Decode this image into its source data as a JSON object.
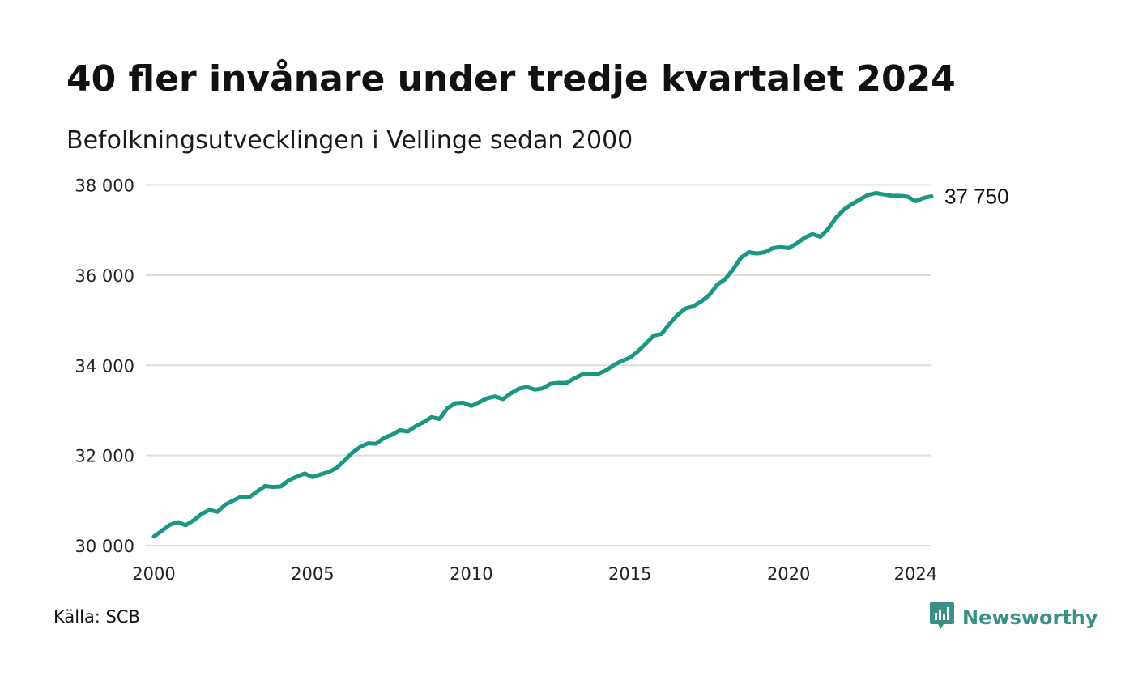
{
  "title": "40 fler invånare under tredje kvartalet 2024",
  "subtitle": "Befolkningsutvecklingen i Vellinge sedan 2000",
  "source": "Källa: SCB",
  "brand": {
    "name": "Newsworthy",
    "icon": "newsworthy-logo-icon"
  },
  "colors": {
    "line": "#1a9682",
    "grid": "#dddddd",
    "brand": "#3a8f87"
  },
  "chart_data": {
    "type": "line",
    "title": "40 fler invånare under tredje kvartalet 2024",
    "subtitle": "Befolkningsutvecklingen i Vellinge sedan 2000",
    "xlabel": "",
    "ylabel": "",
    "xlim": [
      2000,
      2024.5
    ],
    "ylim": [
      30000,
      38000
    ],
    "y_ticks": [
      30000,
      32000,
      34000,
      36000,
      38000
    ],
    "y_tick_labels": [
      "30 000",
      "32 000",
      "34 000",
      "36 000",
      "38 000"
    ],
    "x_ticks": [
      2000,
      2005,
      2010,
      2015,
      2020,
      2024
    ],
    "x_tick_labels": [
      "2000",
      "2005",
      "2010",
      "2015",
      "2020",
      "2024"
    ],
    "grid": "horizontal",
    "end_label": "37 750",
    "series": [
      {
        "x": [
          2000.0,
          2000.25,
          2000.5,
          2000.75,
          2001.0,
          2001.25,
          2001.5,
          2001.75,
          2002.0,
          2002.25,
          2002.5,
          2002.75,
          2003.0,
          2003.25,
          2003.5,
          2003.75,
          2004.0,
          2004.25,
          2004.5,
          2004.75,
          2005.0,
          2005.25,
          2005.5,
          2005.75,
          2006.0,
          2006.25,
          2006.5,
          2006.75,
          2007.0,
          2007.25,
          2007.5,
          2007.75,
          2008.0,
          2008.25,
          2008.5,
          2008.75,
          2009.0,
          2009.25,
          2009.5,
          2009.75,
          2010.0,
          2010.25,
          2010.5,
          2010.75,
          2011.0,
          2011.25,
          2011.5,
          2011.75,
          2012.0,
          2012.25,
          2012.5,
          2012.75,
          2013.0,
          2013.25,
          2013.5,
          2013.75,
          2014.0,
          2014.25,
          2014.5,
          2014.75,
          2015.0,
          2015.25,
          2015.5,
          2015.75,
          2016.0,
          2016.25,
          2016.5,
          2016.75,
          2017.0,
          2017.25,
          2017.5,
          2017.75,
          2018.0,
          2018.25,
          2018.5,
          2018.75,
          2019.0,
          2019.25,
          2019.5,
          2019.75,
          2020.0,
          2020.25,
          2020.5,
          2020.75,
          2021.0,
          2021.25,
          2021.5,
          2021.75,
          2022.0,
          2022.25,
          2022.5,
          2022.75,
          2023.0,
          2023.25,
          2023.5,
          2023.75,
          2024.0,
          2024.25,
          2024.5
        ],
        "values": [
          30200,
          30330,
          30460,
          30520,
          30450,
          30560,
          30700,
          30790,
          30750,
          30910,
          31000,
          31090,
          31070,
          31200,
          31320,
          31300,
          31310,
          31450,
          31530,
          31600,
          31520,
          31580,
          31630,
          31720,
          31880,
          32060,
          32190,
          32270,
          32260,
          32390,
          32460,
          32560,
          32530,
          32650,
          32740,
          32850,
          32810,
          33050,
          33160,
          33170,
          33100,
          33180,
          33270,
          33310,
          33250,
          33380,
          33480,
          33520,
          33460,
          33490,
          33590,
          33610,
          33610,
          33710,
          33800,
          33800,
          33810,
          33890,
          34010,
          34100,
          34170,
          34310,
          34480,
          34660,
          34700,
          34920,
          35120,
          35260,
          35310,
          35420,
          35560,
          35790,
          35910,
          36130,
          36390,
          36510,
          36480,
          36510,
          36600,
          36620,
          36600,
          36700,
          36830,
          36910,
          36850,
          37030,
          37280,
          37460,
          37580,
          37680,
          37780,
          37820,
          37790,
          37760,
          37760,
          37740,
          37640,
          37710,
          37750
        ]
      }
    ]
  }
}
